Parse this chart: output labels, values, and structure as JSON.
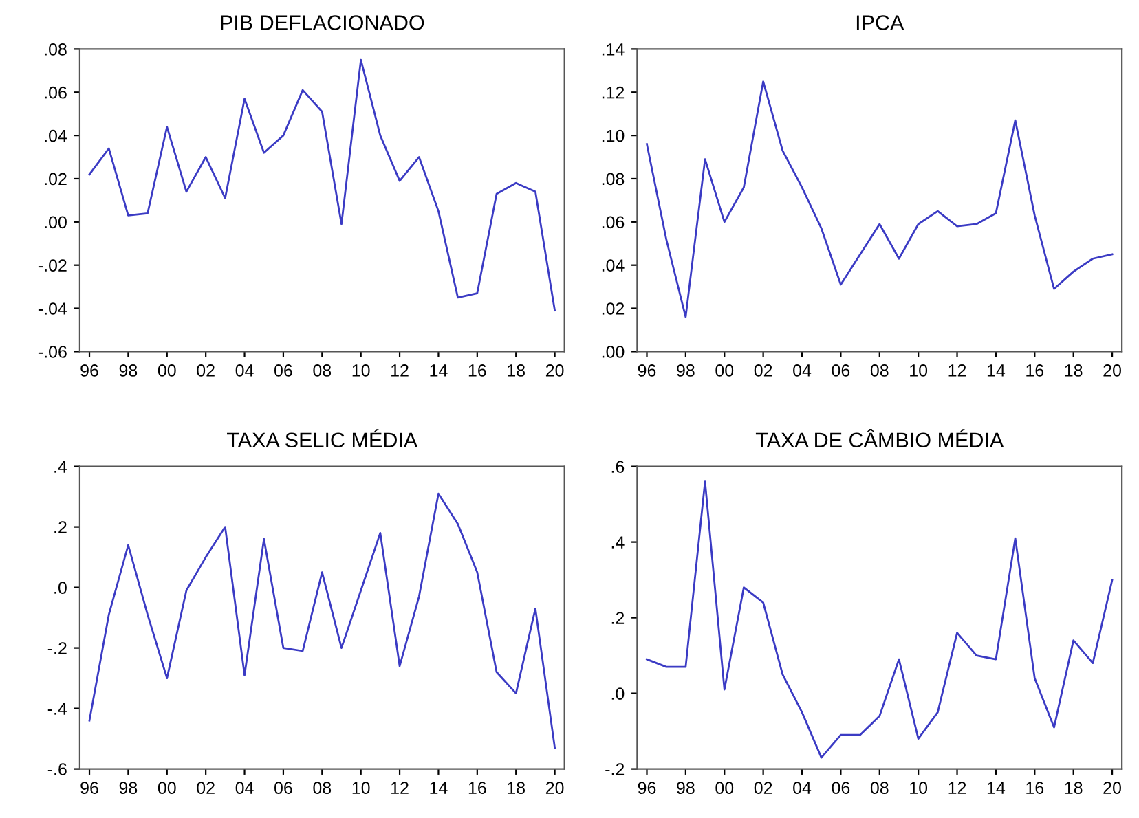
{
  "chart_data": [
    {
      "type": "line",
      "title": "PIB DEFLACIONADO",
      "x": [
        1996,
        1997,
        1998,
        1999,
        2000,
        2001,
        2002,
        2003,
        2004,
        2005,
        2006,
        2007,
        2008,
        2009,
        2010,
        2011,
        2012,
        2013,
        2014,
        2015,
        2016,
        2017,
        2018,
        2019,
        2020
      ],
      "series": [
        {
          "color": "#3b3bc4",
          "values": [
            0.022,
            0.034,
            0.003,
            0.004,
            0.044,
            0.014,
            0.03,
            0.011,
            0.057,
            0.032,
            0.04,
            0.061,
            0.051,
            -0.001,
            0.075,
            0.04,
            0.019,
            0.03,
            0.005,
            -0.035,
            -0.033,
            0.013,
            0.018,
            0.014,
            -0.041
          ]
        }
      ],
      "xlim": [
        1995.5,
        2020.5
      ],
      "xticks": [
        {
          "value": 1996,
          "label": "96"
        },
        {
          "value": 1998,
          "label": "98"
        },
        {
          "value": 2000,
          "label": "00"
        },
        {
          "value": 2002,
          "label": "02"
        },
        {
          "value": 2004,
          "label": "04"
        },
        {
          "value": 2006,
          "label": "06"
        },
        {
          "value": 2008,
          "label": "08"
        },
        {
          "value": 2010,
          "label": "10"
        },
        {
          "value": 2012,
          "label": "12"
        },
        {
          "value": 2014,
          "label": "14"
        },
        {
          "value": 2016,
          "label": "16"
        },
        {
          "value": 2018,
          "label": "18"
        },
        {
          "value": 2020,
          "label": "20"
        }
      ],
      "ylim": [
        -0.06,
        0.08
      ],
      "yticks": [
        {
          "value": -0.06,
          "label": "-.06"
        },
        {
          "value": -0.04,
          "label": "-.04"
        },
        {
          "value": -0.02,
          "label": "-.02"
        },
        {
          "value": 0,
          "label": ".00"
        },
        {
          "value": 0.02,
          "label": ".02"
        },
        {
          "value": 0.04,
          "label": ".04"
        },
        {
          "value": 0.06,
          "label": ".06"
        },
        {
          "value": 0.08,
          "label": ".08"
        }
      ],
      "grid": false,
      "legend": false
    },
    {
      "type": "line",
      "title": "IPCA",
      "x": [
        1996,
        1997,
        1998,
        1999,
        2000,
        2001,
        2002,
        2003,
        2004,
        2005,
        2006,
        2007,
        2008,
        2009,
        2010,
        2011,
        2012,
        2013,
        2014,
        2015,
        2016,
        2017,
        2018,
        2019,
        2020
      ],
      "series": [
        {
          "color": "#3b3bc4",
          "values": [
            0.096,
            0.052,
            0.016,
            0.089,
            0.06,
            0.076,
            0.125,
            0.093,
            0.076,
            0.057,
            0.031,
            0.045,
            0.059,
            0.043,
            0.059,
            0.065,
            0.058,
            0.059,
            0.064,
            0.107,
            0.063,
            0.029,
            0.037,
            0.043,
            0.045
          ]
        }
      ],
      "xlim": [
        1995.5,
        2020.5
      ],
      "xticks": [
        {
          "value": 1996,
          "label": "96"
        },
        {
          "value": 1998,
          "label": "98"
        },
        {
          "value": 2000,
          "label": "00"
        },
        {
          "value": 2002,
          "label": "02"
        },
        {
          "value": 2004,
          "label": "04"
        },
        {
          "value": 2006,
          "label": "06"
        },
        {
          "value": 2008,
          "label": "08"
        },
        {
          "value": 2010,
          "label": "10"
        },
        {
          "value": 2012,
          "label": "12"
        },
        {
          "value": 2014,
          "label": "14"
        },
        {
          "value": 2016,
          "label": "16"
        },
        {
          "value": 2018,
          "label": "18"
        },
        {
          "value": 2020,
          "label": "20"
        }
      ],
      "ylim": [
        0,
        0.14
      ],
      "yticks": [
        {
          "value": 0,
          "label": ".00"
        },
        {
          "value": 0.02,
          "label": ".02"
        },
        {
          "value": 0.04,
          "label": ".04"
        },
        {
          "value": 0.06,
          "label": ".06"
        },
        {
          "value": 0.08,
          "label": ".08"
        },
        {
          "value": 0.1,
          "label": ".10"
        },
        {
          "value": 0.12,
          "label": ".12"
        },
        {
          "value": 0.14,
          "label": ".14"
        }
      ],
      "grid": false,
      "legend": false
    },
    {
      "type": "line",
      "title": "TAXA SELIC MÉDIA",
      "x": [
        1996,
        1997,
        1998,
        1999,
        2000,
        2001,
        2002,
        2003,
        2004,
        2005,
        2006,
        2007,
        2008,
        2009,
        2010,
        2011,
        2012,
        2013,
        2014,
        2015,
        2016,
        2017,
        2018,
        2019,
        2020
      ],
      "series": [
        {
          "color": "#3b3bc4",
          "values": [
            -0.44,
            -0.09,
            0.14,
            -0.09,
            -0.3,
            -0.01,
            0.1,
            0.2,
            -0.29,
            0.16,
            -0.2,
            -0.21,
            0.05,
            -0.2,
            -0.01,
            0.18,
            -0.26,
            -0.03,
            0.31,
            0.21,
            0.05,
            -0.28,
            -0.35,
            -0.07,
            -0.53
          ]
        }
      ],
      "xlim": [
        1995.5,
        2020.5
      ],
      "xticks": [
        {
          "value": 1996,
          "label": "96"
        },
        {
          "value": 1998,
          "label": "98"
        },
        {
          "value": 2000,
          "label": "00"
        },
        {
          "value": 2002,
          "label": "02"
        },
        {
          "value": 2004,
          "label": "04"
        },
        {
          "value": 2006,
          "label": "06"
        },
        {
          "value": 2008,
          "label": "08"
        },
        {
          "value": 2010,
          "label": "10"
        },
        {
          "value": 2012,
          "label": "12"
        },
        {
          "value": 2014,
          "label": "14"
        },
        {
          "value": 2016,
          "label": "16"
        },
        {
          "value": 2018,
          "label": "18"
        },
        {
          "value": 2020,
          "label": "20"
        }
      ],
      "ylim": [
        -0.6,
        0.4
      ],
      "yticks": [
        {
          "value": -0.6,
          "label": "-.6"
        },
        {
          "value": -0.4,
          "label": "-.4"
        },
        {
          "value": -0.2,
          "label": "-.2"
        },
        {
          "value": 0,
          "label": ".0"
        },
        {
          "value": 0.2,
          "label": ".2"
        },
        {
          "value": 0.4,
          "label": ".4"
        }
      ],
      "grid": false,
      "legend": false
    },
    {
      "type": "line",
      "title": "TAXA DE CÂMBIO MÉDIA",
      "x": [
        1996,
        1997,
        1998,
        1999,
        2000,
        2001,
        2002,
        2003,
        2004,
        2005,
        2006,
        2007,
        2008,
        2009,
        2010,
        2011,
        2012,
        2013,
        2014,
        2015,
        2016,
        2017,
        2018,
        2019,
        2020
      ],
      "series": [
        {
          "color": "#3b3bc4",
          "values": [
            0.09,
            0.07,
            0.07,
            0.56,
            0.01,
            0.28,
            0.24,
            0.05,
            -0.05,
            -0.17,
            -0.11,
            -0.11,
            -0.06,
            0.09,
            -0.12,
            -0.05,
            0.16,
            0.1,
            0.09,
            0.41,
            0.04,
            -0.09,
            0.14,
            0.08,
            0.3
          ]
        }
      ],
      "xlim": [
        1995.5,
        2020.5
      ],
      "xticks": [
        {
          "value": 1996,
          "label": "96"
        },
        {
          "value": 1998,
          "label": "98"
        },
        {
          "value": 2000,
          "label": "00"
        },
        {
          "value": 2002,
          "label": "02"
        },
        {
          "value": 2004,
          "label": "04"
        },
        {
          "value": 2006,
          "label": "06"
        },
        {
          "value": 2008,
          "label": "08"
        },
        {
          "value": 2010,
          "label": "10"
        },
        {
          "value": 2012,
          "label": "12"
        },
        {
          "value": 2014,
          "label": "14"
        },
        {
          "value": 2016,
          "label": "16"
        },
        {
          "value": 2018,
          "label": "18"
        },
        {
          "value": 2020,
          "label": "20"
        }
      ],
      "ylim": [
        -0.2,
        0.6
      ],
      "yticks": [
        {
          "value": -0.2,
          "label": "-.2"
        },
        {
          "value": 0,
          "label": ".0"
        },
        {
          "value": 0.2,
          "label": ".2"
        },
        {
          "value": 0.4,
          "label": ".4"
        },
        {
          "value": 0.6,
          "label": ".6"
        }
      ],
      "grid": false,
      "legend": false
    }
  ]
}
